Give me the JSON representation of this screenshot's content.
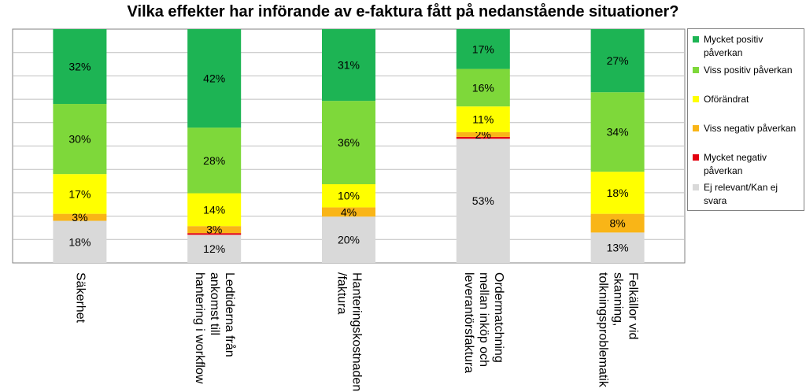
{
  "title": "Vilka effekter har införande av e-faktura fått på nedanstående situationer?",
  "chart_data": {
    "type": "bar",
    "stacked": true,
    "percent_stacked": true,
    "categories": [
      "Säkerhet",
      "Ledtiderna från ankomst till hantering i workflow",
      "Hanteringskostnaden /faktura",
      "Ordermatchning mellan inköp och leverantörsfaktura",
      "Felkällor vid skanning, tolkningsproblematik"
    ],
    "series": [
      {
        "name": "Ej relevant/Kan ej svara",
        "color": "#d9d9d9",
        "values": [
          18,
          12,
          20,
          53,
          13
        ],
        "labels": [
          "18%",
          "12%",
          "20%",
          "53%",
          "13%"
        ]
      },
      {
        "name": "Mycket negativ påverkan",
        "color": "#e3000f",
        "values": [
          0,
          0.7,
          0,
          0.8,
          0
        ],
        "labels": [
          "",
          "",
          "",
          "",
          ""
        ]
      },
      {
        "name": "Viss negativ påverkan",
        "color": "#f9b517",
        "values": [
          3,
          3,
          4,
          2,
          8
        ],
        "labels": [
          "3%",
          "3%",
          "4%",
          "2%",
          "8%"
        ]
      },
      {
        "name": "Oförändrat",
        "color": "#ffff00",
        "values": [
          17,
          14,
          10,
          11,
          18
        ],
        "labels": [
          "17%",
          "14%",
          "10%",
          "11%",
          "18%"
        ]
      },
      {
        "name": "Viss positiv påverkan",
        "color": "#7ed83a",
        "values": [
          30,
          28,
          36,
          16,
          34
        ],
        "labels": [
          "30%",
          "28%",
          "36%",
          "16%",
          "34%"
        ]
      },
      {
        "name": "Mycket positiv påverkan",
        "color": "#1db454",
        "values": [
          32,
          42,
          31,
          17,
          27
        ],
        "labels": [
          "32%",
          "42%",
          "31%",
          "17%",
          "27%"
        ]
      }
    ],
    "legend": {
      "position": "right",
      "items": [
        {
          "label": "Mycket positiv påverkan",
          "color": "#1db454"
        },
        {
          "label": "Viss positiv påverkan",
          "color": "#7ed83a"
        },
        {
          "label": "Oförändrat",
          "color": "#ffff00"
        },
        {
          "label": "Viss negativ påverkan",
          "color": "#f9b517"
        },
        {
          "label": "Mycket negativ påverkan",
          "color": "#e3000f"
        },
        {
          "label": "Ej relevant/Kan ej svara",
          "color": "#d9d9d9"
        }
      ]
    },
    "category_label_lines": [
      [
        "Säkerhet"
      ],
      [
        "Ledtiderna från",
        "ankomst till",
        "hantering i workflow"
      ],
      [
        "Hanteringskostnaden",
        "/faktura"
      ],
      [
        "Ordermatchning",
        "mellan inköp och",
        "leverantörsfaktura"
      ],
      [
        "Felkällor vid",
        "skanning,",
        "tolkningsproblematik"
      ]
    ],
    "ylim": [
      0,
      100
    ],
    "grid": true,
    "plot_background": "#ffffff",
    "grid_color": "#bfbfbf",
    "axis_color": "#808080"
  }
}
